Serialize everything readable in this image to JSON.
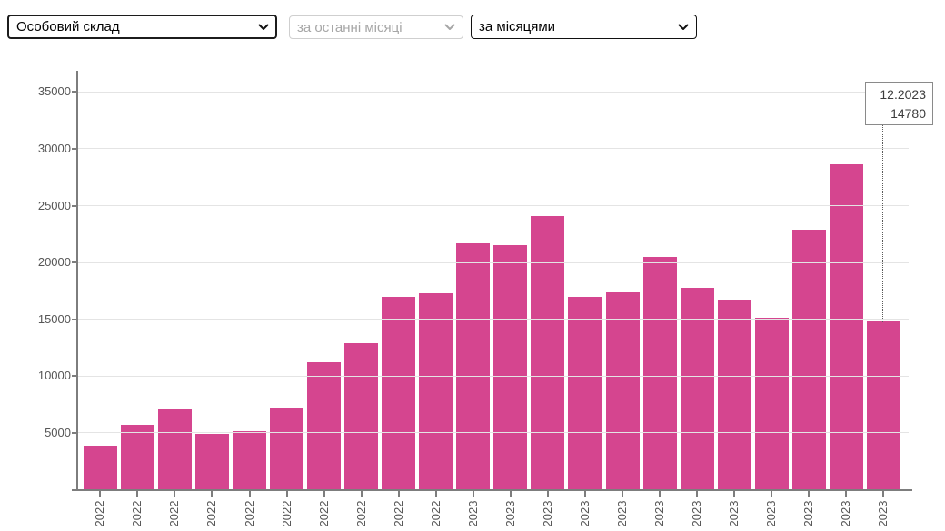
{
  "controls": {
    "dataset_select": {
      "value": "Особовий склад"
    },
    "period_select": {
      "value": "за останні місяці",
      "disabled": true
    },
    "grouping_select": {
      "value": "за місяцями"
    }
  },
  "chart_data": {
    "type": "bar",
    "title": "",
    "xlabel": "",
    "ylabel": "",
    "categories": [
      "2022",
      "2022",
      "2022",
      "2022",
      "2022",
      "2022",
      "2022",
      "2022",
      "2022",
      "2022",
      "2023",
      "2023",
      "2023",
      "2023",
      "2023",
      "2023",
      "2023",
      "2023",
      "2023",
      "2023",
      "2023",
      "2023"
    ],
    "values": [
      3900,
      5700,
      7050,
      4900,
      5150,
      7250,
      11200,
      12900,
      17000,
      17300,
      21700,
      21500,
      24050,
      17000,
      17400,
      20450,
      17800,
      16700,
      15100,
      22900,
      28600,
      14780
    ],
    "ylim": [
      0,
      35000
    ],
    "yticks": [
      5000,
      10000,
      15000,
      20000,
      25000,
      30000,
      35000
    ],
    "grid": true,
    "legend": "none",
    "bar_color": "#d5458f",
    "tooltip": {
      "label": "12.2023",
      "value": "14780",
      "bar_index": 21
    }
  },
  "colors": {
    "bar": "#d5458f",
    "axis": "#7d7d7d",
    "gridline": "#e4e4e4",
    "tick_label": "#565656",
    "tooltip_border": "#8a8a8a",
    "disabled_text": "#a6a6a6"
  }
}
